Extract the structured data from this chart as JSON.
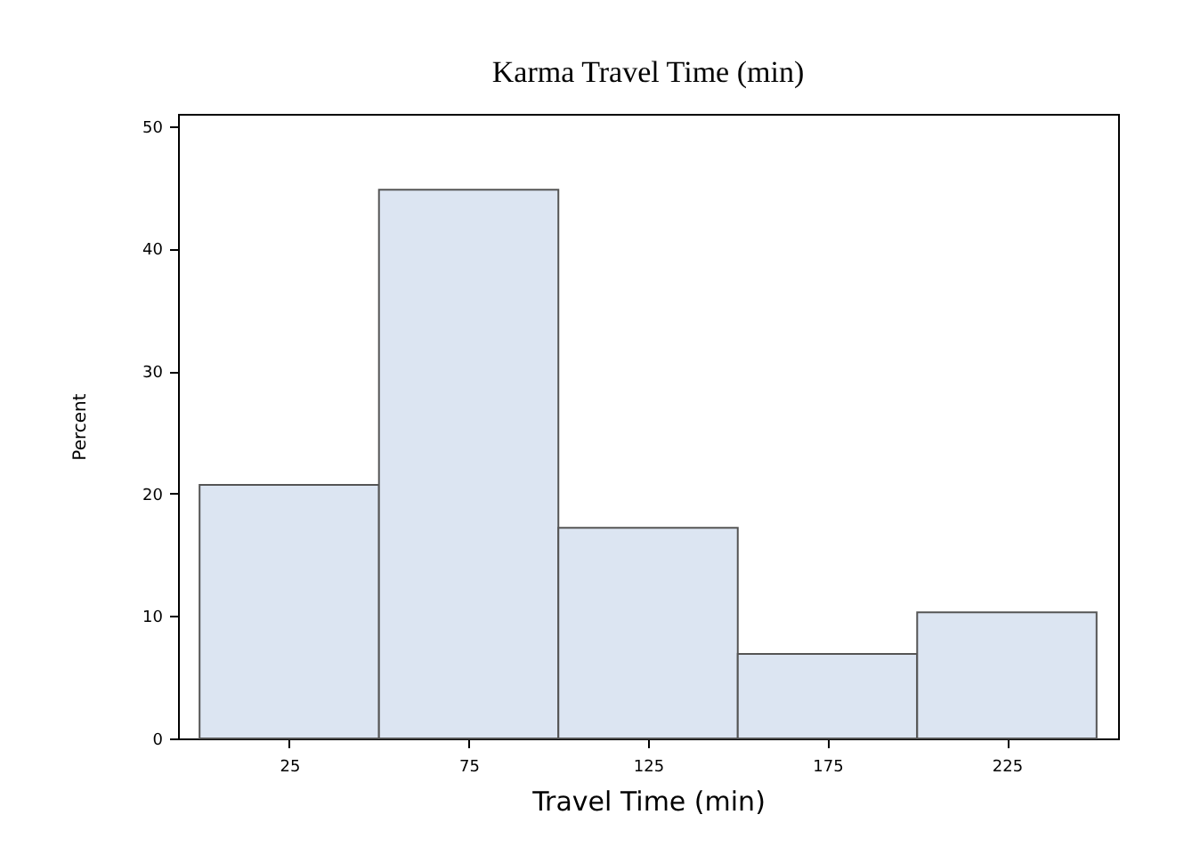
{
  "chart_data": {
    "type": "histogram",
    "title": "Karma Travel Time (min)",
    "xlabel": "Travel Time (min)",
    "ylabel": "Percent",
    "bins": [
      0,
      50,
      100,
      150,
      200,
      250
    ],
    "values": [
      20.7,
      44.8,
      17.2,
      6.9,
      10.3
    ],
    "color": "#dce5f2",
    "xlim": [
      -6,
      256
    ],
    "xticks": [
      25,
      75,
      125,
      175,
      225
    ],
    "ylim": [
      0,
      51
    ],
    "yticks": [
      0,
      10,
      20,
      30,
      40,
      50
    ],
    "grid": false
  }
}
